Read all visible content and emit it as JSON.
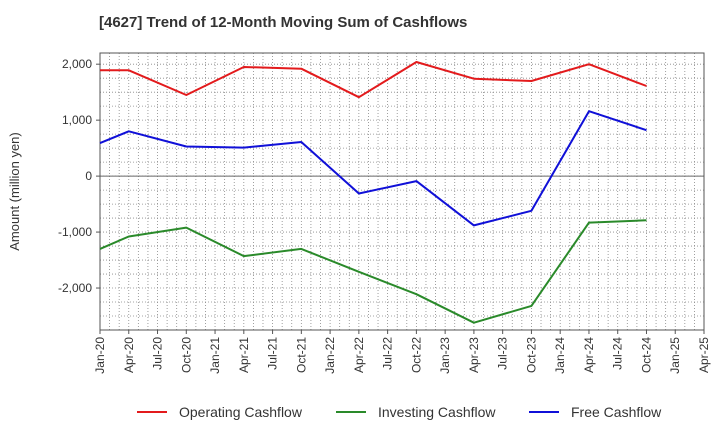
{
  "title": "[4627]  Trend of 12-Month Moving Sum of Cashflows",
  "colors": {
    "operating": "#e31a1c",
    "investing": "#2a8a2a",
    "free": "#1010d8"
  },
  "chart_data": {
    "type": "line",
    "title": "[4627]  Trend of 12-Month Moving Sum of Cashflows",
    "xlabel": "",
    "ylabel": "Amount (million yen)",
    "ylim": [
      -2750,
      2200
    ],
    "y_ticks": [
      2000,
      1000,
      0,
      -1000,
      -2000
    ],
    "y_tick_labels": [
      "2,000",
      "1,000",
      "0",
      "-1,000",
      "-2,000"
    ],
    "x_ticks": [
      "Jan-20",
      "Apr-20",
      "Jul-20",
      "Oct-20",
      "Jan-21",
      "Apr-21",
      "Jul-21",
      "Oct-21",
      "Jan-22",
      "Apr-22",
      "Jul-22",
      "Oct-22",
      "Jan-23",
      "Apr-23",
      "Jul-23",
      "Oct-23",
      "Jan-24",
      "Apr-24",
      "Jul-24",
      "Oct-24",
      "Jan-25",
      "Apr-25"
    ],
    "grid": true,
    "legend": "bottom",
    "series": [
      {
        "name": "Operating Cashflow",
        "color": "#e31a1c",
        "points": [
          [
            "Jan-20",
            1890
          ],
          [
            "Apr-20",
            1890
          ],
          [
            "Oct-20",
            1450
          ],
          [
            "Apr-21",
            1950
          ],
          [
            "Oct-21",
            1920
          ],
          [
            "Apr-22",
            1410
          ],
          [
            "Oct-22",
            2040
          ],
          [
            "Apr-23",
            1740
          ],
          [
            "Oct-23",
            1700
          ],
          [
            "Apr-24",
            2000
          ],
          [
            "Oct-24",
            1610
          ]
        ]
      },
      {
        "name": "Investing Cashflow",
        "color": "#2a8a2a",
        "points": [
          [
            "Jan-20",
            -1300
          ],
          [
            "Apr-20",
            -1080
          ],
          [
            "Oct-20",
            -920
          ],
          [
            "Apr-21",
            -1430
          ],
          [
            "Oct-21",
            -1300
          ],
          [
            "Apr-22",
            -1710
          ],
          [
            "Oct-22",
            -2110
          ],
          [
            "Apr-23",
            -2620
          ],
          [
            "Oct-23",
            -2320
          ],
          [
            "Apr-24",
            -830
          ],
          [
            "Oct-24",
            -790
          ]
        ]
      },
      {
        "name": "Free Cashflow",
        "color": "#1010d8",
        "points": [
          [
            "Jan-20",
            590
          ],
          [
            "Apr-20",
            800
          ],
          [
            "Oct-20",
            530
          ],
          [
            "Apr-21",
            510
          ],
          [
            "Oct-21",
            610
          ],
          [
            "Apr-22",
            -310
          ],
          [
            "Oct-22",
            -90
          ],
          [
            "Apr-23",
            -880
          ],
          [
            "Oct-23",
            -620
          ],
          [
            "Apr-24",
            1160
          ],
          [
            "Oct-24",
            820
          ]
        ]
      }
    ]
  }
}
